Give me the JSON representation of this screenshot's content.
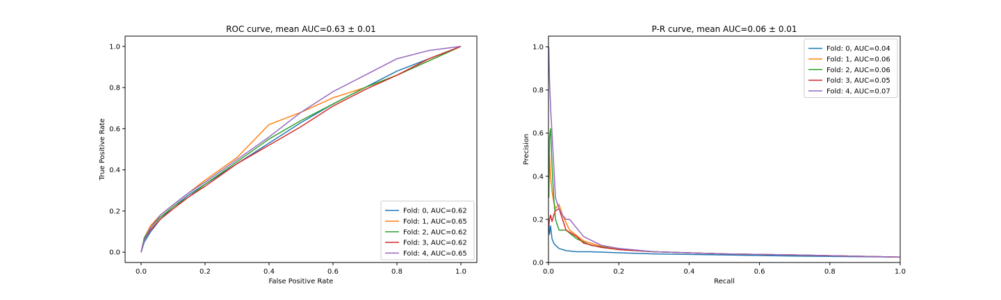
{
  "chart_data": [
    {
      "type": "line",
      "title": "ROC curve, mean AUC=0.63 ± 0.01",
      "xlabel": "False Positive Rate",
      "ylabel": "True Positive Rate",
      "xlim": [
        -0.05,
        1.05
      ],
      "ylim": [
        -0.05,
        1.05
      ],
      "xticks": [
        0.0,
        0.2,
        0.4,
        0.6,
        0.8,
        1.0
      ],
      "yticks": [
        0.0,
        0.2,
        0.4,
        0.6,
        0.8,
        1.0
      ],
      "xtick_labels": [
        "0.0",
        "0.2",
        "0.4",
        "0.6",
        "0.8",
        "1.0"
      ],
      "ytick_labels": [
        "0.0",
        "0.2",
        "0.4",
        "0.6",
        "0.8",
        "1.0"
      ],
      "grid": false,
      "legend_position": "lower-right",
      "series": [
        {
          "name": "Fold: 0, AUC=0.62",
          "color": "#1f77b4",
          "x": [
            0,
            0.01,
            0.03,
            0.06,
            0.1,
            0.15,
            0.2,
            0.3,
            0.4,
            0.5,
            0.6,
            0.7,
            0.8,
            0.9,
            1.0
          ],
          "y": [
            0,
            0.05,
            0.1,
            0.16,
            0.22,
            0.28,
            0.33,
            0.43,
            0.53,
            0.63,
            0.72,
            0.8,
            0.88,
            0.94,
            1.0
          ]
        },
        {
          "name": "Fold: 1, AUC=0.65",
          "color": "#ff7f0e",
          "x": [
            0,
            0.01,
            0.03,
            0.06,
            0.1,
            0.15,
            0.2,
            0.3,
            0.4,
            0.5,
            0.6,
            0.7,
            0.8,
            0.9,
            1.0
          ],
          "y": [
            0,
            0.07,
            0.13,
            0.18,
            0.23,
            0.29,
            0.35,
            0.46,
            0.62,
            0.68,
            0.75,
            0.8,
            0.86,
            0.93,
            1.0
          ]
        },
        {
          "name": "Fold: 2, AUC=0.62",
          "color": "#2ca02c",
          "x": [
            0,
            0.01,
            0.03,
            0.06,
            0.1,
            0.15,
            0.2,
            0.3,
            0.4,
            0.5,
            0.6,
            0.7,
            0.8,
            0.9,
            1.0
          ],
          "y": [
            0,
            0.07,
            0.12,
            0.17,
            0.22,
            0.27,
            0.33,
            0.44,
            0.55,
            0.64,
            0.72,
            0.8,
            0.86,
            0.93,
            1.0
          ]
        },
        {
          "name": "Fold: 3, AUC=0.62",
          "color": "#d62728",
          "x": [
            0,
            0.01,
            0.03,
            0.06,
            0.1,
            0.15,
            0.2,
            0.3,
            0.4,
            0.5,
            0.6,
            0.7,
            0.8,
            0.9,
            1.0
          ],
          "y": [
            0,
            0.06,
            0.11,
            0.16,
            0.21,
            0.27,
            0.32,
            0.43,
            0.52,
            0.61,
            0.71,
            0.79,
            0.86,
            0.94,
            1.0
          ]
        },
        {
          "name": "Fold: 4, AUC=0.65",
          "color": "#9467bd",
          "x": [
            0,
            0.01,
            0.03,
            0.06,
            0.1,
            0.15,
            0.2,
            0.3,
            0.4,
            0.5,
            0.6,
            0.7,
            0.8,
            0.9,
            1.0
          ],
          "y": [
            0,
            0.06,
            0.12,
            0.18,
            0.23,
            0.29,
            0.34,
            0.45,
            0.56,
            0.68,
            0.78,
            0.86,
            0.94,
            0.98,
            1.0
          ]
        }
      ]
    },
    {
      "type": "line",
      "title": "P-R curve, mean AUC=0.06 ± 0.01",
      "xlabel": "Recall",
      "ylabel": "Precision",
      "xlim": [
        0.0,
        1.0
      ],
      "ylim": [
        0.0,
        1.05
      ],
      "xticks": [
        0.0,
        0.2,
        0.4,
        0.6,
        0.8,
        1.0
      ],
      "yticks": [
        0.0,
        0.2,
        0.4,
        0.6,
        0.8,
        1.0
      ],
      "xtick_labels": [
        "0.0",
        "0.2",
        "0.4",
        "0.6",
        "0.8",
        "1.0"
      ],
      "ytick_labels": [
        "0.0",
        "0.2",
        "0.4",
        "0.6",
        "0.8",
        "1.0"
      ],
      "grid": false,
      "legend_position": "upper-right",
      "series": [
        {
          "name": "Fold: 0, AUC=0.04",
          "color": "#1f77b4",
          "x": [
            0.001,
            0.003,
            0.006,
            0.01,
            0.015,
            0.02,
            0.03,
            0.05,
            0.08,
            0.12,
            0.2,
            0.3,
            0.5,
            0.7,
            1.0
          ],
          "y": [
            0.18,
            0.13,
            0.17,
            0.11,
            0.09,
            0.08,
            0.065,
            0.055,
            0.05,
            0.05,
            0.045,
            0.04,
            0.035,
            0.03,
            0.025
          ]
        },
        {
          "name": "Fold: 1, AUC=0.06",
          "color": "#ff7f0e",
          "x": [
            0.001,
            0.003,
            0.006,
            0.01,
            0.015,
            0.02,
            0.03,
            0.04,
            0.06,
            0.1,
            0.15,
            0.2,
            0.3,
            0.5,
            0.7,
            1.0
          ],
          "y": [
            0.3,
            0.5,
            0.4,
            0.33,
            0.28,
            0.25,
            0.27,
            0.22,
            0.15,
            0.1,
            0.075,
            0.06,
            0.05,
            0.04,
            0.035,
            0.025
          ]
        },
        {
          "name": "Fold: 2, AUC=0.06",
          "color": "#2ca02c",
          "x": [
            0.001,
            0.003,
            0.006,
            0.01,
            0.015,
            0.02,
            0.03,
            0.05,
            0.08,
            0.12,
            0.2,
            0.3,
            0.5,
            0.7,
            1.0
          ],
          "y": [
            0.3,
            0.58,
            0.62,
            0.45,
            0.3,
            0.2,
            0.15,
            0.15,
            0.11,
            0.08,
            0.06,
            0.05,
            0.04,
            0.035,
            0.025
          ]
        },
        {
          "name": "Fold: 3, AUC=0.05",
          "color": "#d62728",
          "x": [
            0.001,
            0.003,
            0.006,
            0.01,
            0.015,
            0.02,
            0.03,
            0.04,
            0.05,
            0.06,
            0.08,
            0.1,
            0.15,
            0.2,
            0.3,
            0.5,
            0.7,
            1.0
          ],
          "y": [
            0.17,
            0.2,
            0.22,
            0.19,
            0.22,
            0.24,
            0.25,
            0.2,
            0.15,
            0.14,
            0.12,
            0.09,
            0.07,
            0.06,
            0.05,
            0.04,
            0.035,
            0.025
          ]
        },
        {
          "name": "Fold: 4, AUC=0.07",
          "color": "#9467bd",
          "x": [
            0.001,
            0.003,
            0.006,
            0.01,
            0.015,
            0.02,
            0.03,
            0.04,
            0.05,
            0.06,
            0.08,
            0.1,
            0.15,
            0.2,
            0.3,
            0.5,
            0.7,
            1.0
          ],
          "y": [
            1.0,
            0.85,
            0.72,
            0.6,
            0.45,
            0.3,
            0.25,
            0.22,
            0.2,
            0.2,
            0.16,
            0.12,
            0.08,
            0.065,
            0.05,
            0.04,
            0.035,
            0.025
          ]
        }
      ]
    }
  ]
}
